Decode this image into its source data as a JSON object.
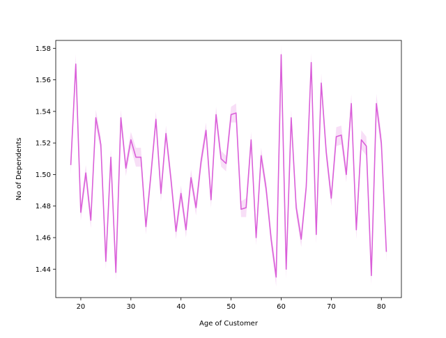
{
  "chart_data": {
    "type": "line",
    "title": "",
    "xlabel": "Age of Customer",
    "ylabel": "No of Dependents",
    "xlim": [
      15,
      84
    ],
    "ylim": [
      1.422,
      1.585
    ],
    "xticks": [
      20,
      30,
      40,
      50,
      60,
      70,
      80
    ],
    "yticks": [
      1.44,
      1.46,
      1.48,
      1.5,
      1.52,
      1.54,
      1.56,
      1.58
    ],
    "grid": false,
    "legend": "none",
    "colors": {
      "line": "#da5fd9",
      "band": "#da5fd9"
    },
    "series": [
      {
        "x": [
          18,
          19,
          20,
          21,
          22,
          23,
          24,
          25,
          26,
          27,
          28,
          29,
          30,
          31,
          32,
          33,
          34,
          35,
          36,
          37,
          38,
          39,
          40,
          41,
          42,
          43,
          44,
          45,
          46,
          47,
          48,
          49,
          50,
          51,
          52,
          53,
          54,
          55,
          56,
          57,
          58,
          59,
          60,
          61,
          62,
          63,
          64,
          65,
          66,
          67,
          68,
          69,
          70,
          71,
          72,
          73,
          74,
          75,
          76,
          77,
          78,
          79,
          80,
          81
        ],
        "y": [
          1.506,
          1.57,
          1.476,
          1.501,
          1.471,
          1.536,
          1.519,
          1.445,
          1.511,
          1.438,
          1.536,
          1.504,
          1.522,
          1.511,
          1.511,
          1.467,
          1.5,
          1.535,
          1.488,
          1.526,
          1.497,
          1.464,
          1.488,
          1.465,
          1.498,
          1.479,
          1.508,
          1.528,
          1.484,
          1.538,
          1.51,
          1.507,
          1.538,
          1.539,
          1.478,
          1.479,
          1.522,
          1.46,
          1.512,
          1.491,
          1.459,
          1.435,
          1.576,
          1.44,
          1.536,
          1.479,
          1.459,
          1.492,
          1.571,
          1.462,
          1.558,
          1.514,
          1.485,
          1.524,
          1.525,
          1.5,
          1.545,
          1.465,
          1.522,
          1.518,
          1.436,
          1.545,
          1.52,
          1.451
        ],
        "ci": [
          0.006,
          0.006,
          0.005,
          0.005,
          0.005,
          0.005,
          0.005,
          0.005,
          0.005,
          0.005,
          0.005,
          0.005,
          0.005,
          0.006,
          0.006,
          0.005,
          0.005,
          0.005,
          0.005,
          0.005,
          0.005,
          0.005,
          0.005,
          0.005,
          0.005,
          0.005,
          0.005,
          0.005,
          0.005,
          0.005,
          0.005,
          0.005,
          0.005,
          0.006,
          0.005,
          0.006,
          0.005,
          0.005,
          0.005,
          0.005,
          0.005,
          0.006,
          0.006,
          0.006,
          0.005,
          0.005,
          0.005,
          0.005,
          0.006,
          0.006,
          0.006,
          0.005,
          0.005,
          0.006,
          0.006,
          0.005,
          0.006,
          0.006,
          0.006,
          0.006,
          0.006,
          0.006,
          0.006,
          0.006
        ]
      }
    ]
  }
}
